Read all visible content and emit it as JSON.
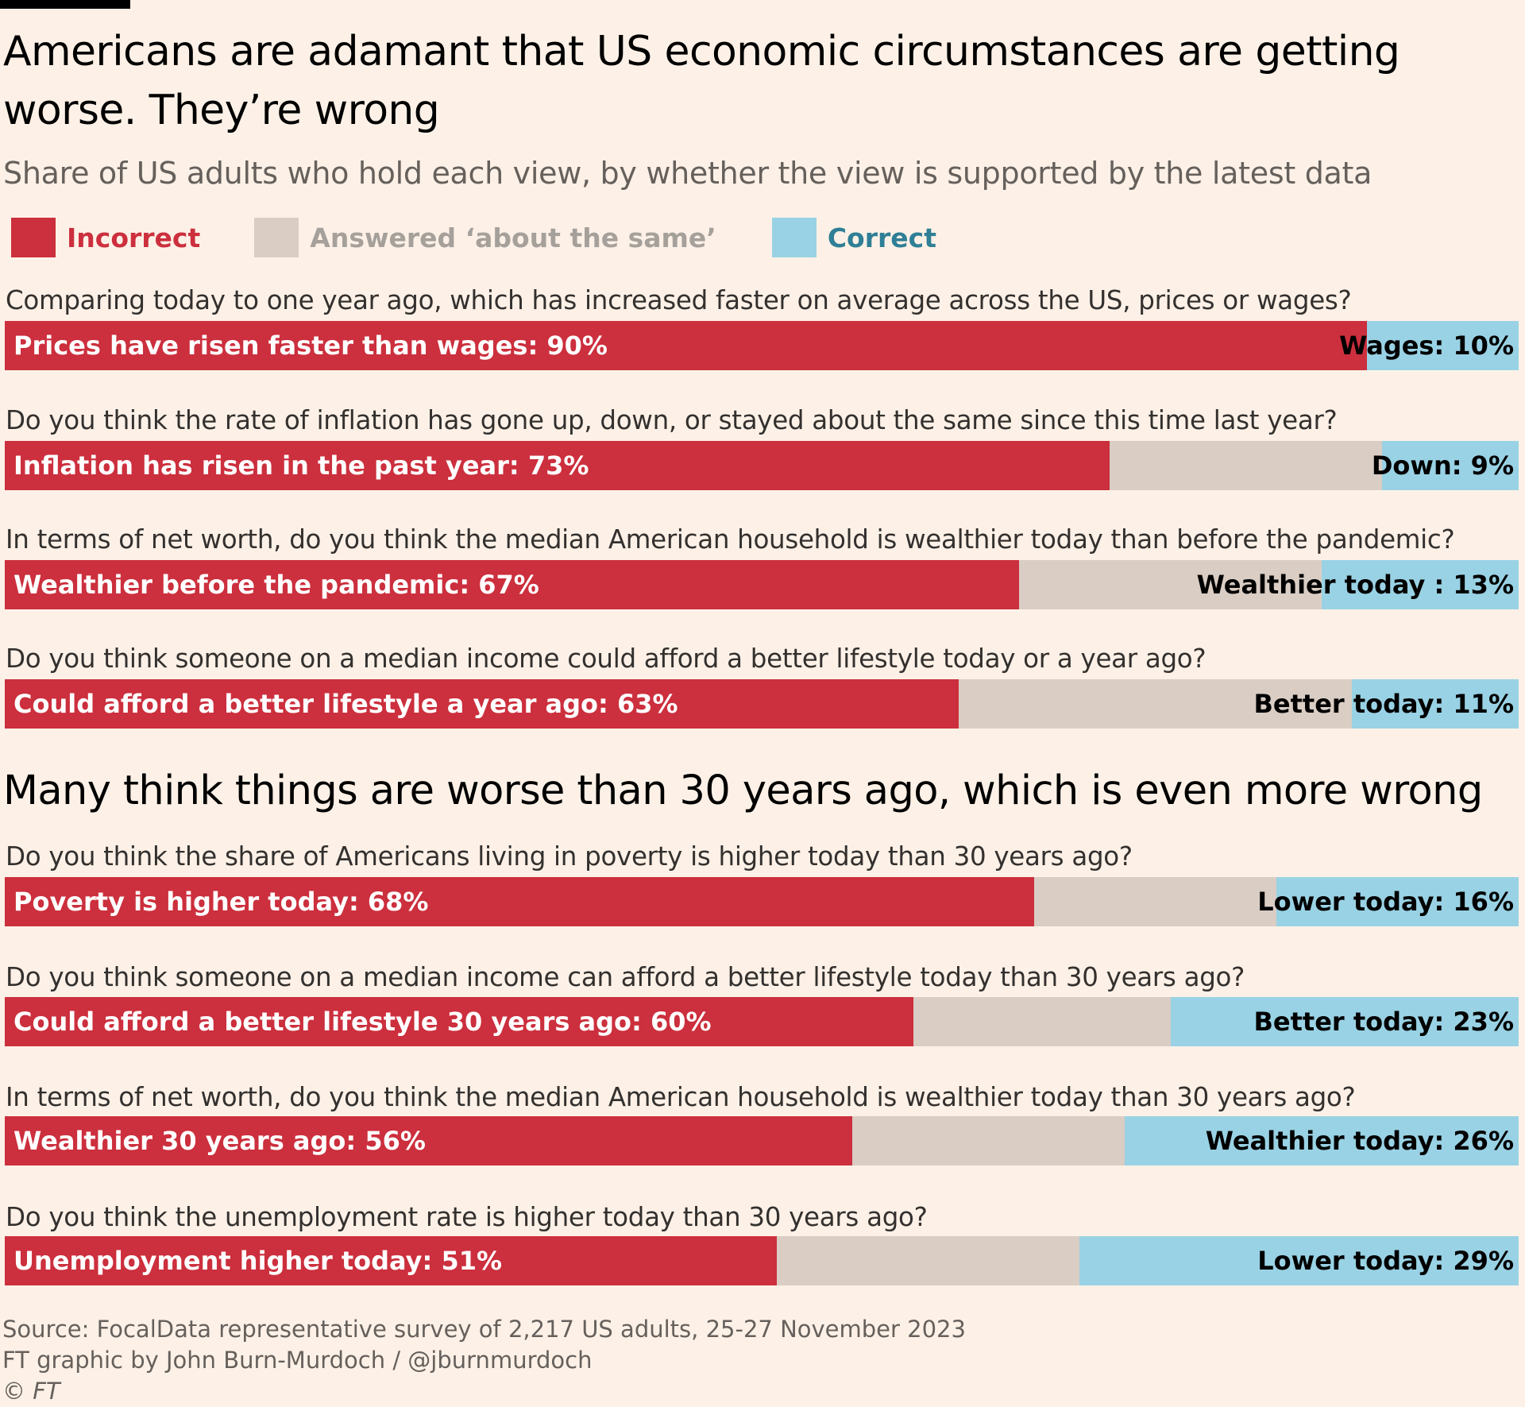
{
  "title": "Americans are adamant that US economic circumstances are getting worse. They’re wrong",
  "subtitle": "Share of US adults who hold each view, by whether the view is supported by the latest data",
  "colors": {
    "incorrect": "#cc2f3d",
    "same": "#d9cdc4",
    "correct": "#99d2e4",
    "legend_incorrect_text": "#cc2f3d",
    "legend_same_text": "#a6a09b",
    "legend_correct_text": "#2f7f96"
  },
  "legend": {
    "incorrect": "Incorrect",
    "same": "Answered ‘about the same’",
    "correct": "Correct"
  },
  "section2_title": "Many think things are worse than 30 years ago, which is even more wrong",
  "chart_data": {
    "type": "bar",
    "orientation": "horizontal",
    "stacked": true,
    "unit": "%",
    "xlim": [
      0,
      100
    ],
    "series": [
      {
        "name": "Incorrect"
      },
      {
        "name": "Answered ‘about the same’"
      },
      {
        "name": "Correct"
      }
    ],
    "questions": [
      {
        "question": "Comparing today to one year ago, which has increased faster on average across the US, prices or wages?",
        "incorrect": 90,
        "correct": 10,
        "incorrect_label": "Prices have risen faster than wages: 90%",
        "correct_label": "Wages: 10%"
      },
      {
        "question": "Do you think the rate of inflation has gone up, down, or stayed about the same since this time last year?",
        "incorrect": 73,
        "correct": 9,
        "incorrect_label": "Inflation has risen in the past year: 73%",
        "correct_label": "Down: 9%"
      },
      {
        "question": "In terms of net worth, do you think the median American household is wealthier today than before the pandemic?",
        "incorrect": 67,
        "correct": 13,
        "incorrect_label": "Wealthier before the pandemic: 67%",
        "correct_label": "Wealthier today : 13%"
      },
      {
        "question": "Do you think someone on a median income could afford a better lifestyle today or a year ago?",
        "incorrect": 63,
        "correct": 11,
        "incorrect_label": "Could afford a better lifestyle a year ago: 63%",
        "correct_label": "Better today: 11%"
      },
      {
        "question": "Do you think the share of Americans living in poverty is higher today than 30 years ago?",
        "incorrect": 68,
        "correct": 16,
        "incorrect_label": "Poverty is higher today: 68%",
        "correct_label": "Lower today: 16%"
      },
      {
        "question": "Do you think someone on a median income can afford a better lifestyle today than 30 years ago?",
        "incorrect": 60,
        "correct": 23,
        "incorrect_label": "Could afford a better lifestyle 30 years ago: 60%",
        "correct_label": "Better today: 23%"
      },
      {
        "question": "In terms of net worth, do you think the median American household is wealthier today than 30 years ago?",
        "incorrect": 56,
        "correct": 26,
        "incorrect_label": "Wealthier 30 years ago: 56%",
        "correct_label": "Wealthier today: 26%"
      },
      {
        "question": "Do you think the unemployment rate is higher today than 30 years ago?",
        "incorrect": 51,
        "correct": 29,
        "incorrect_label": "Unemployment higher today: 51%",
        "correct_label": "Lower today: 29%"
      }
    ]
  },
  "footer": {
    "source": "Source: FocalData representative survey of 2,217 US adults, 25-27 November 2023",
    "credit": "FT graphic by John Burn-Murdoch / @jburnmurdoch",
    "copyright": "© FT"
  }
}
